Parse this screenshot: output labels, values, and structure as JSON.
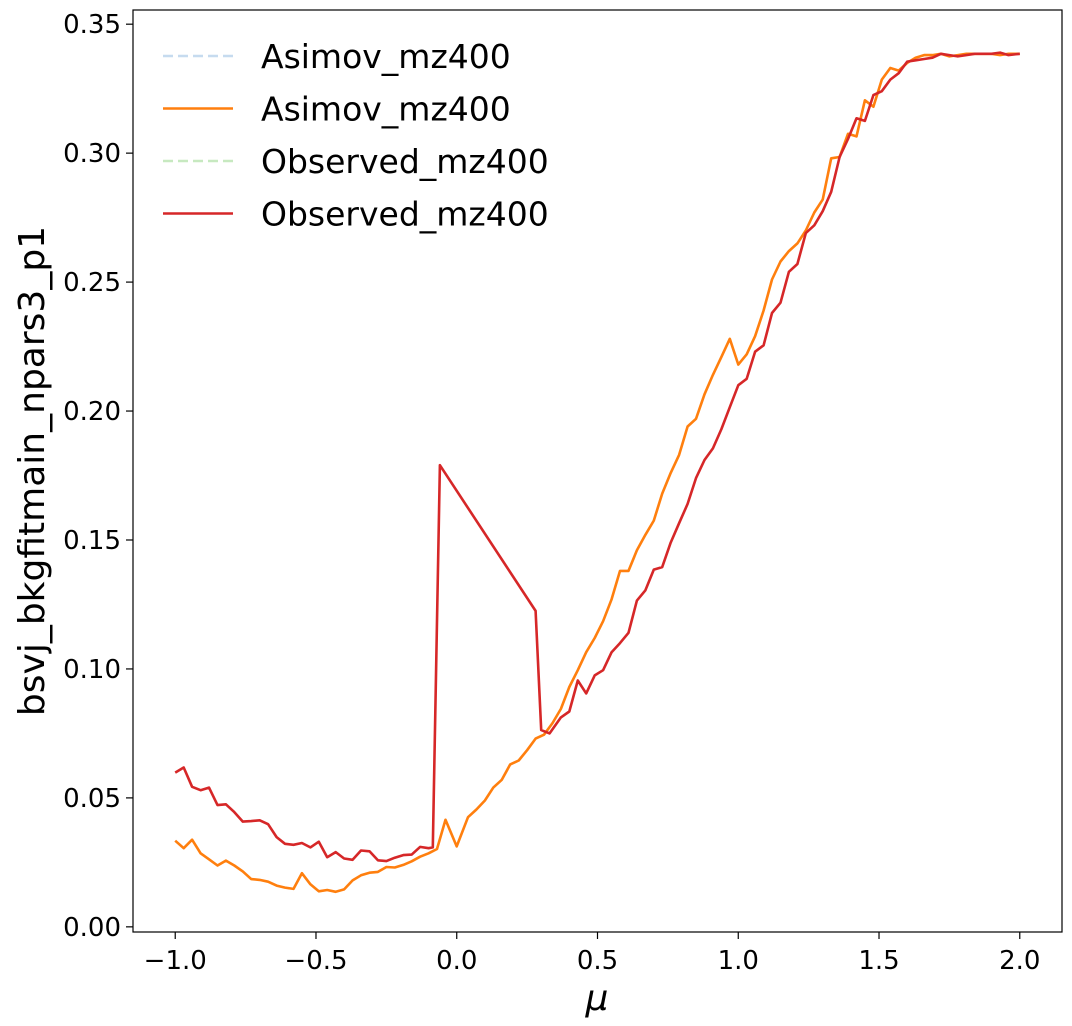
{
  "chart_data": {
    "type": "line",
    "xlabel": "μ",
    "ylabel": "bsvj_bkgfitmain_npars3_p1",
    "xlim": [
      -1.15,
      2.15
    ],
    "ylim": [
      -0.002,
      0.3555
    ],
    "xticks": [
      -1.0,
      -0.5,
      0.0,
      0.5,
      1.0,
      1.5,
      2.0
    ],
    "xtick_labels": [
      "−1.0",
      "−0.5",
      "0.0",
      "0.5",
      "1.0",
      "1.5",
      "2.0"
    ],
    "yticks": [
      0.0,
      0.05,
      0.1,
      0.15,
      0.2,
      0.25,
      0.3,
      0.35
    ],
    "ytick_labels": [
      "0.00",
      "0.05",
      "0.10",
      "0.15",
      "0.20",
      "0.25",
      "0.30",
      "0.35"
    ],
    "grid": false,
    "legend_position": "top-left",
    "series": [
      {
        "name": "Asimov_mz400",
        "color": "#c6dbef",
        "style": "dashed",
        "x": [],
        "y": []
      },
      {
        "name": "Asimov_mz400",
        "color": "#ff7f0e",
        "style": "solid",
        "x": [
          -1.0,
          -0.97,
          -0.94,
          -0.91,
          -0.88,
          -0.85,
          -0.82,
          -0.79,
          -0.76,
          -0.73,
          -0.7,
          -0.67,
          -0.64,
          -0.61,
          -0.58,
          -0.55,
          -0.52,
          -0.49,
          -0.46,
          -0.43,
          -0.4,
          -0.37,
          -0.34,
          -0.31,
          -0.28,
          -0.25,
          -0.22,
          -0.19,
          -0.16,
          -0.13,
          -0.1,
          -0.07,
          -0.04,
          0.0,
          0.04,
          0.07,
          0.1,
          0.13,
          0.16,
          0.19,
          0.22,
          0.25,
          0.28,
          0.31,
          0.34,
          0.37,
          0.4,
          0.43,
          0.46,
          0.49,
          0.52,
          0.55,
          0.58,
          0.61,
          0.64,
          0.67,
          0.7,
          0.73,
          0.76,
          0.79,
          0.82,
          0.85,
          0.88,
          0.91,
          0.94,
          0.97,
          1.0,
          1.03,
          1.06,
          1.09,
          1.12,
          1.15,
          1.18,
          1.21,
          1.24,
          1.27,
          1.3,
          1.33,
          1.36,
          1.39,
          1.42,
          1.45,
          1.48,
          1.51,
          1.54,
          1.57,
          1.6,
          1.63,
          1.66,
          1.69,
          1.72,
          1.75,
          1.78,
          1.81,
          1.84,
          1.87,
          1.9,
          1.93,
          1.96,
          2.0
        ],
        "y": [
          0.0334,
          0.0305,
          0.0338,
          0.0285,
          0.0262,
          0.0238,
          0.0257,
          0.0238,
          0.0215,
          0.0185,
          0.0182,
          0.0175,
          0.016,
          0.0152,
          0.0147,
          0.0208,
          0.0165,
          0.0138,
          0.0143,
          0.0136,
          0.0145,
          0.018,
          0.02,
          0.021,
          0.0213,
          0.0232,
          0.023,
          0.024,
          0.0254,
          0.0272,
          0.0285,
          0.0302,
          0.0415,
          0.0312,
          0.0425,
          0.0455,
          0.049,
          0.054,
          0.057,
          0.063,
          0.0645,
          0.0685,
          0.073,
          0.0745,
          0.079,
          0.0845,
          0.093,
          0.0995,
          0.1065,
          0.112,
          0.1185,
          0.127,
          0.138,
          0.138,
          0.146,
          0.152,
          0.1575,
          0.168,
          0.176,
          0.183,
          0.194,
          0.197,
          0.2065,
          0.214,
          0.221,
          0.228,
          0.218,
          0.222,
          0.229,
          0.239,
          0.251,
          0.258,
          0.262,
          0.265,
          0.27,
          0.277,
          0.282,
          0.298,
          0.2985,
          0.3075,
          0.3065,
          0.3205,
          0.318,
          0.3285,
          0.333,
          0.332,
          0.335,
          0.337,
          0.338,
          0.338,
          0.3385,
          0.3375,
          0.338,
          0.3385,
          0.3385,
          0.3385,
          0.3385,
          0.338,
          0.3385,
          0.3385
        ]
      },
      {
        "name": "Observed_mz400",
        "color": "#c7e9c0",
        "style": "dashed",
        "x": [],
        "y": []
      },
      {
        "name": "Observed_mz400",
        "color": "#d62728",
        "style": "solid",
        "x": [
          -1.0,
          -0.97,
          -0.94,
          -0.91,
          -0.88,
          -0.85,
          -0.82,
          -0.79,
          -0.76,
          -0.73,
          -0.7,
          -0.67,
          -0.64,
          -0.61,
          -0.58,
          -0.55,
          -0.52,
          -0.49,
          -0.46,
          -0.43,
          -0.4,
          -0.37,
          -0.34,
          -0.31,
          -0.28,
          -0.25,
          -0.22,
          -0.19,
          -0.16,
          -0.13,
          -0.1,
          -0.085,
          -0.06,
          0.28,
          0.3,
          0.33,
          0.37,
          0.4,
          0.43,
          0.46,
          0.49,
          0.52,
          0.55,
          0.58,
          0.61,
          0.64,
          0.67,
          0.7,
          0.73,
          0.76,
          0.79,
          0.82,
          0.85,
          0.88,
          0.91,
          0.94,
          0.97,
          1.0,
          1.03,
          1.06,
          1.09,
          1.12,
          1.15,
          1.18,
          1.21,
          1.24,
          1.27,
          1.3,
          1.33,
          1.36,
          1.39,
          1.42,
          1.45,
          1.48,
          1.51,
          1.54,
          1.57,
          1.6,
          1.63,
          1.66,
          1.69,
          1.72,
          1.75,
          1.78,
          1.81,
          1.84,
          1.87,
          1.9,
          1.93,
          1.96,
          2.0
        ],
        "y": [
          0.0598,
          0.0618,
          0.0543,
          0.053,
          0.054,
          0.0472,
          0.0475,
          0.0445,
          0.0408,
          0.041,
          0.0413,
          0.0398,
          0.0348,
          0.0322,
          0.0318,
          0.0325,
          0.0308,
          0.033,
          0.027,
          0.029,
          0.0265,
          0.026,
          0.0296,
          0.0293,
          0.0258,
          0.0255,
          0.0268,
          0.0278,
          0.028,
          0.031,
          0.0305,
          0.0308,
          0.179,
          0.1225,
          0.0763,
          0.075,
          0.0812,
          0.0835,
          0.0955,
          0.0905,
          0.0975,
          0.0995,
          0.1065,
          0.11,
          0.114,
          0.1265,
          0.1305,
          0.1385,
          0.1395,
          0.149,
          0.1565,
          0.164,
          0.174,
          0.181,
          0.1855,
          0.193,
          0.2015,
          0.21,
          0.2125,
          0.223,
          0.2255,
          0.238,
          0.242,
          0.254,
          0.257,
          0.269,
          0.272,
          0.2775,
          0.285,
          0.2985,
          0.3055,
          0.3135,
          0.3125,
          0.3225,
          0.324,
          0.3285,
          0.331,
          0.3355,
          0.336,
          0.3365,
          0.337,
          0.3385,
          0.338,
          0.3375,
          0.338,
          0.3385,
          0.3385,
          0.3385,
          0.339,
          0.338,
          0.3385
        ]
      }
    ]
  }
}
